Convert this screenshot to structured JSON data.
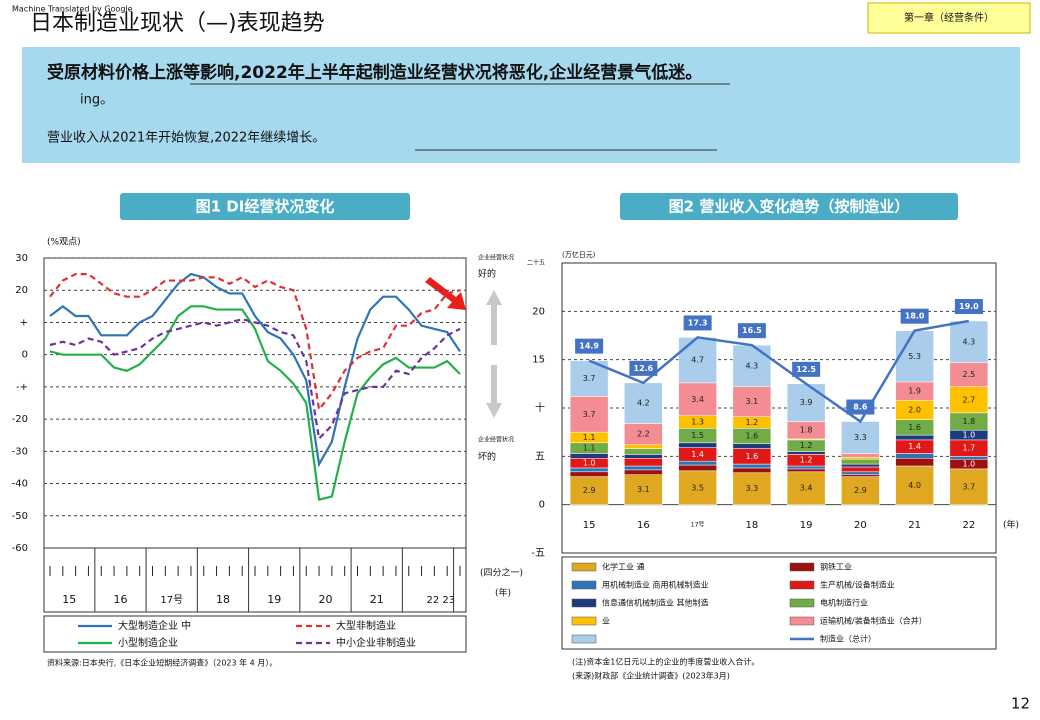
{
  "header": {
    "watermark": "Machine Translated by Google",
    "title": "日本制造业现状（—)表现趋势",
    "chapter": "第一章（经营条件）"
  },
  "summary": {
    "lines": [
      "受原材料价格上涨等影响,2022年上半年起制造业经营状况将恶化,企业经营景气低迷。",
      "ing。",
      "营业收入从2021年开始恢复,2022年继续增长。"
    ]
  },
  "page_number": 12,
  "chart_data": [
    {
      "type": "line",
      "title": "图1 DI经营状况变化",
      "y_label": "(%观点)",
      "x_unit": "(四分之一)",
      "x_label": "(年)",
      "annotations": {
        "good_caption": "企业经营状况",
        "good": "好的",
        "bad_caption": "企业经营状况",
        "bad": "坏的"
      },
      "source": "资料来源:日本央行,《日本企业短期经济调查》（2023 年 4 月）。",
      "ylim": [
        -60,
        30
      ],
      "yticks": [
        30,
        20,
        {
          "value": 10,
          "label": "+"
        },
        0,
        {
          "value": -10,
          "label": "-+"
        },
        -20,
        -30,
        -40,
        -50,
        -60
      ],
      "grid": true,
      "categories": [
        null,
        "15",
        null,
        null,
        null,
        "16",
        null,
        null,
        null,
        "17号",
        null,
        null,
        null,
        "18",
        null,
        null,
        null,
        "19",
        null,
        null,
        null,
        "20",
        null,
        null,
        null,
        "21",
        null,
        null,
        null,
        null,
        "22 23",
        null,
        null
      ],
      "series": [
        {
          "name": "大型制造企业 中",
          "color": "#2e75b6",
          "dashed": false,
          "values": [
            12,
            15,
            12,
            12,
            6,
            6,
            6,
            10,
            12,
            17,
            22,
            25,
            24,
            21,
            19,
            19,
            12,
            7,
            5,
            0,
            -8,
            -34,
            -27,
            -10,
            5,
            14,
            18,
            18,
            14,
            9,
            8,
            7,
            1
          ]
        },
        {
          "name": "大型非制造业",
          "color": "#e03030",
          "dashed": true,
          "values": [
            18,
            23,
            25,
            25,
            22,
            19,
            18,
            18,
            20,
            23,
            23,
            23,
            24,
            24,
            22,
            24,
            21,
            23,
            21,
            20,
            8,
            -17,
            -12,
            -5,
            -1,
            1,
            2,
            9,
            9,
            13,
            14,
            19,
            20
          ]
        },
        {
          "name": "小型制造企业",
          "color": "#22b04b",
          "dashed": false,
          "values": [
            1,
            0,
            0,
            0,
            0,
            -4,
            -5,
            -3,
            1,
            5,
            12,
            15,
            15,
            14,
            14,
            14,
            8,
            -2,
            -5,
            -9,
            -15,
            -45,
            -44,
            -27,
            -12,
            -7,
            -3,
            -1,
            -4,
            -4,
            -4,
            -2,
            -6
          ]
        },
        {
          "name": "中小企业非制造业",
          "color": "#7030a0",
          "dashed": true,
          "values": [
            3,
            4,
            3,
            5,
            4,
            0,
            1,
            2,
            5,
            7,
            8,
            9,
            10,
            9,
            10,
            11,
            10,
            9,
            7,
            6,
            -2,
            -26,
            -22,
            -12,
            -11,
            -10,
            -10,
            -5,
            -6,
            -1,
            2,
            6,
            8
          ]
        }
      ]
    },
    {
      "type": "combo",
      "title": "图2 营业收入变化趋势（按制造业）",
      "y_label": "(万亿日元)",
      "x_label": "(年)",
      "notes": [
        "(注)资本金1亿日元以上的企业的季度营业收入合计。",
        "(来源)财政部《企业统计调查》(2023年3月)"
      ],
      "ylim": [
        -5,
        25
      ],
      "yticks": [
        {
          "value": 25,
          "label": "二十五"
        },
        20,
        15,
        {
          "value": 10,
          "label": "十"
        },
        {
          "value": 5,
          "label": "五"
        },
        0,
        {
          "value": -5,
          "label": "-五"
        }
      ],
      "grid": true,
      "categories": [
        "15",
        "16",
        "17号",
        "18",
        "19",
        "20",
        "21",
        "22"
      ],
      "series": [
        {
          "name": "化学工业 通",
          "kind": "bar",
          "color": "#e0a820",
          "values": [
            2.9,
            3.1,
            3.5,
            3.3,
            3.4,
            2.9,
            4,
            3.7
          ],
          "value_labels": [
            "2.9",
            "3.1",
            "3.5",
            "3.3",
            "3.4",
            "2.9",
            "4.0",
            "3.7"
          ]
        },
        {
          "name": "钢铁工业",
          "kind": "bar",
          "color": "#9c1010",
          "values": [
            0.5,
            0.5,
            0.6,
            0.5,
            0.3,
            0.2,
            0.8,
            1
          ],
          "value_labels": [
            null,
            null,
            null,
            null,
            null,
            null,
            null,
            "1.0"
          ]
        },
        {
          "name": "用机械制造业 商用机械制造业",
          "kind": "bar",
          "color": "#2e75b6",
          "values": [
            0.4,
            0.4,
            0.4,
            0.4,
            0.3,
            0.3,
            0.5,
            0.3
          ]
        },
        {
          "name": "生产机械/设备制造业",
          "kind": "bar",
          "color": "#e01818",
          "values": [
            1,
            0.8,
            1.4,
            1.6,
            1.2,
            0.5,
            1.4,
            1.7
          ],
          "value_labels": [
            "1.0",
            null,
            "1.4",
            "1.6",
            "1.2",
            null,
            "1.4",
            "1.7"
          ]
        },
        {
          "name": "信息通信机械制造业 其他制造",
          "kind": "bar",
          "color": "#203a80",
          "values": [
            0.5,
            0.4,
            0.5,
            0.5,
            0.3,
            0.3,
            0.5,
            1
          ],
          "value_labels": [
            null,
            null,
            null,
            null,
            null,
            null,
            null,
            "1.0"
          ]
        },
        {
          "name": "电机制造行业",
          "kind": "bar",
          "color": "#70ad47",
          "values": [
            1.1,
            0.6,
            1.5,
            1.6,
            1.2,
            0.5,
            1.6,
            1.8
          ],
          "value_labels": [
            "1.1",
            null,
            "1.5",
            "1.6",
            "1.2",
            null,
            "1.6",
            "1.8"
          ]
        },
        {
          "name": "业",
          "kind": "bar",
          "color": "#ffc000",
          "values": [
            1.1,
            0.4,
            1.3,
            1.2,
            0.1,
            0.2,
            2,
            2.7
          ],
          "value_labels": [
            "1.1",
            null,
            "1.3",
            "1.2",
            null,
            null,
            "2.0",
            "2.7"
          ]
        },
        {
          "name": "运输机械/装备制造业（合并）",
          "kind": "bar",
          "color": "#f48c94",
          "values": [
            3.7,
            2.2,
            3.4,
            3.1,
            1.8,
            0.4,
            1.9,
            2.5
          ],
          "value_labels": [
            "3.7",
            "2.2",
            "3.4",
            "3.1",
            "1.8",
            null,
            "1.9",
            "2.5"
          ]
        },
        {
          "kind": "bar",
          "color": "#a9cdea",
          "values": [
            3.7,
            4.2,
            4.7,
            4.3,
            3.9,
            3.3,
            5.3,
            4.3
          ],
          "value_labels": [
            "3.7",
            "4.2",
            "4.7",
            "4.3",
            "3.9",
            "3.3",
            "5.3",
            "4.3"
          ]
        },
        {
          "name": "制造业（总计）",
          "kind": "line",
          "color": "#4472c4",
          "values": [
            14.9,
            12.6,
            17.3,
            16.5,
            12.5,
            8.6,
            18,
            19
          ],
          "value_labels": [
            "14.9",
            "12.6",
            "17.3",
            "16.5",
            "12.5",
            "8.6",
            "18.0",
            "19.0"
          ]
        }
      ]
    }
  ]
}
